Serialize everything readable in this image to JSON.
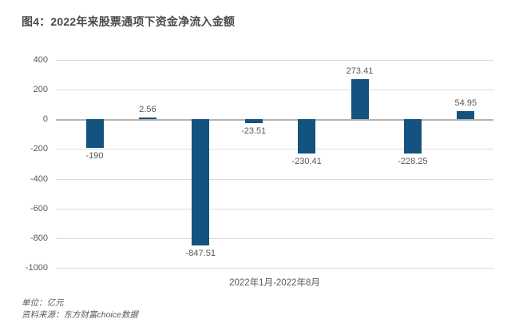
{
  "figure": {
    "title": "图4：2022年来股票通项下资金净流入金额"
  },
  "chart_data": {
    "type": "bar",
    "title": "图4：2022年来股票通项下资金净流入金额",
    "xlabel": "2022年1月-2022年8月",
    "ylabel": "",
    "values": [
      -190,
      2.56,
      -847.51,
      -23.51,
      -230.41,
      273.41,
      -228.25,
      54.95
    ],
    "data_labels": [
      "-190",
      "2.56",
      "-847.51",
      "-23.51",
      "-230.41",
      "273.41",
      "-228.25",
      "54.95"
    ],
    "ylim": [
      -1000,
      400
    ],
    "yticks": [
      400,
      200,
      0,
      -200,
      -400,
      -600,
      -800,
      -1000
    ],
    "bar_color": "#14527f",
    "grid": true,
    "legend_position": "none"
  },
  "footer": {
    "unit_line": "单位：亿元",
    "source_line": "资料来源：东方财富choice数据"
  }
}
